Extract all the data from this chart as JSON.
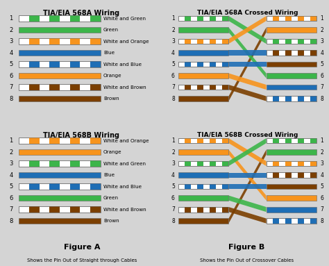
{
  "bg_color": "#d4d4d4",
  "panel_bg": "#f0f0f0",
  "title_568a": "TIA/EIA 568A Wiring",
  "title_568b": "TIA/EIA 568B Wiring",
  "title_568a_cross": "TIA/EIA 568A Crossed Wiring",
  "title_568b_cross": "TIA/EIA 568B Crossed Wiring",
  "figure_a": "Figure A",
  "figure_b": "Figure B",
  "caption_a": "Shows the Pin Out of Straight through Cables",
  "caption_b": "Shows the Pin Out of Crossover Cables",
  "wires_568a": [
    {
      "pin": 1,
      "solid": false,
      "color": "#3cb54a",
      "label": "White and Green"
    },
    {
      "pin": 2,
      "solid": true,
      "color": "#3cb54a",
      "label": "Green"
    },
    {
      "pin": 3,
      "solid": false,
      "color": "#f7941d",
      "label": "White and Orange"
    },
    {
      "pin": 4,
      "solid": true,
      "color": "#1e6eb5",
      "label": "Blue"
    },
    {
      "pin": 5,
      "solid": false,
      "color": "#1e6eb5",
      "label": "White and Blue"
    },
    {
      "pin": 6,
      "solid": true,
      "color": "#f7941d",
      "label": "Orange"
    },
    {
      "pin": 7,
      "solid": false,
      "color": "#7b3f00",
      "label": "White and Brown"
    },
    {
      "pin": 8,
      "solid": true,
      "color": "#7b3f00",
      "label": "Brown"
    }
  ],
  "wires_568b": [
    {
      "pin": 1,
      "solid": false,
      "color": "#f7941d",
      "label": "White and Orange"
    },
    {
      "pin": 2,
      "solid": true,
      "color": "#f7941d",
      "label": "Orange"
    },
    {
      "pin": 3,
      "solid": false,
      "color": "#3cb54a",
      "label": "White and Green"
    },
    {
      "pin": 4,
      "solid": true,
      "color": "#1e6eb5",
      "label": "Blue"
    },
    {
      "pin": 5,
      "solid": false,
      "color": "#1e6eb5",
      "label": "White and Blue"
    },
    {
      "pin": 6,
      "solid": true,
      "color": "#3cb54a",
      "label": "Green"
    },
    {
      "pin": 7,
      "solid": false,
      "color": "#7b3f00",
      "label": "White and Brown"
    },
    {
      "pin": 8,
      "solid": true,
      "color": "#7b3f00",
      "label": "Brown"
    }
  ],
  "cross_568a_connections": [
    0,
    1,
    2,
    3,
    4,
    5,
    6,
    7
  ],
  "cross_568a_right_wires": [
    {
      "pin": 1,
      "solid": false,
      "color": "#f7941d"
    },
    {
      "pin": 2,
      "solid": true,
      "color": "#f7941d"
    },
    {
      "pin": 3,
      "solid": false,
      "color": "#3cb54a"
    },
    {
      "pin": 4,
      "solid": false,
      "color": "#7b3f00"
    },
    {
      "pin": 5,
      "solid": true,
      "color": "#7b3f00"
    },
    {
      "pin": 6,
      "solid": true,
      "color": "#3cb54a"
    },
    {
      "pin": 7,
      "solid": true,
      "color": "#1e6eb5"
    },
    {
      "pin": 8,
      "solid": false,
      "color": "#1e6eb5"
    }
  ],
  "cross_568a_line_colors": [
    "#3cb54a",
    "#3cb54a",
    "#f7941d",
    "#1e6eb5",
    "#1e6eb5",
    "#f7941d",
    "#7b3f00",
    "#7b3f00"
  ],
  "cross_568a_left_rows": [
    0,
    1,
    2,
    3,
    4,
    5,
    6,
    7
  ],
  "cross_568a_right_rows": [
    2,
    5,
    0,
    6,
    7,
    3,
    4,
    1
  ],
  "cross_568b_right_wires": [
    {
      "pin": 1,
      "solid": false,
      "color": "#3cb54a"
    },
    {
      "pin": 2,
      "solid": true,
      "color": "#3cb54a"
    },
    {
      "pin": 3,
      "solid": false,
      "color": "#f7941d"
    },
    {
      "pin": 4,
      "solid": false,
      "color": "#7b3f00"
    },
    {
      "pin": 5,
      "solid": true,
      "color": "#7b3f00"
    },
    {
      "pin": 6,
      "solid": true,
      "color": "#f7941d"
    },
    {
      "pin": 7,
      "solid": true,
      "color": "#1e6eb5"
    },
    {
      "pin": 8,
      "solid": false,
      "color": "#1e6eb5"
    }
  ],
  "cross_568b_line_colors": [
    "#f7941d",
    "#f7941d",
    "#3cb54a",
    "#1e6eb5",
    "#1e6eb5",
    "#3cb54a",
    "#7b3f00",
    "#7b3f00"
  ],
  "cross_568b_left_rows": [
    0,
    1,
    2,
    3,
    4,
    5,
    6,
    7
  ],
  "cross_568b_right_rows": [
    2,
    5,
    0,
    6,
    7,
    3,
    4,
    1
  ]
}
